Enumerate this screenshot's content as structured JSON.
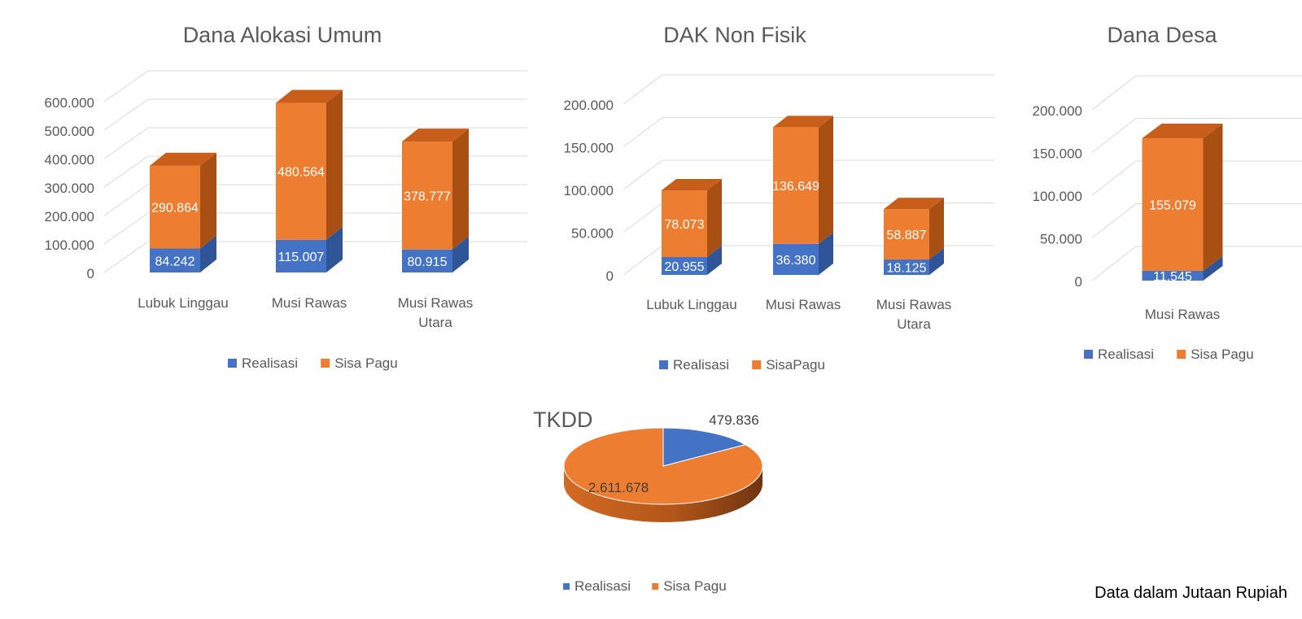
{
  "note": "Data dalam Jutaan Rupiah",
  "colors": {
    "realisasi": "#4472C4",
    "realisasi_top": "#3b63ad",
    "realisasi_side": "#2f5597",
    "sisa": "#ED7D31",
    "sisa_top": "#c85e1a",
    "sisa_side": "#a85014",
    "grid": "#d9d9d9",
    "text": "#595959"
  },
  "chart_data": [
    {
      "type": "bar",
      "stacked": true,
      "title": "Dana Alokasi Umum",
      "categories": [
        "Lubuk Linggau",
        "Musi Rawas",
        "Musi Rawas Utara"
      ],
      "series": [
        {
          "name": "Realisasi",
          "values": [
            84242,
            115007,
            80915
          ],
          "labels": [
            "84.242",
            "115.007",
            "80.915"
          ]
        },
        {
          "name": "Sisa Pagu",
          "values": [
            290864,
            480564,
            378777
          ],
          "labels": [
            "290.864",
            "480.564",
            "378.777"
          ]
        }
      ],
      "ylim": [
        0,
        600000
      ],
      "yticks": [
        0,
        100000,
        200000,
        300000,
        400000,
        500000,
        600000
      ],
      "ytick_labels": [
        "0",
        "100.000",
        "200.000",
        "300.000",
        "400.000",
        "500.000",
        "600.000"
      ],
      "legend": "bottom",
      "grid": true
    },
    {
      "type": "bar",
      "stacked": true,
      "title": "DAK Non Fisik",
      "categories": [
        "Lubuk Linggau",
        "Musi Rawas",
        "Musi Rawas Utara"
      ],
      "series": [
        {
          "name": "Realisasi",
          "values": [
            20955,
            36380,
            18125
          ],
          "labels": [
            "20.955",
            "36.380",
            "18.125"
          ]
        },
        {
          "name": "SisaPagu",
          "values": [
            78073,
            136649,
            58887
          ],
          "labels": [
            "78.073",
            "136.649",
            "58.887"
          ]
        }
      ],
      "ylim": [
        0,
        200000
      ],
      "yticks": [
        0,
        50000,
        100000,
        150000,
        200000
      ],
      "ytick_labels": [
        "0",
        "50.000",
        "100.000",
        "150.000",
        "200.000"
      ],
      "legend": "bottom",
      "grid": true
    },
    {
      "type": "bar",
      "stacked": true,
      "title": "Dana Desa",
      "categories": [
        "Musi Rawas"
      ],
      "series": [
        {
          "name": "Realisasi",
          "values": [
            11545
          ],
          "labels": [
            "11.545"
          ]
        },
        {
          "name": "Sisa Pagu",
          "values": [
            155079
          ],
          "labels": [
            "155.079"
          ]
        }
      ],
      "ylim": [
        0,
        200000
      ],
      "yticks": [
        0,
        50000,
        100000,
        150000,
        200000
      ],
      "ytick_labels": [
        "0",
        "50.000",
        "100.000",
        "150.000",
        "200.000"
      ],
      "legend": "bottom",
      "grid": true
    },
    {
      "type": "pie",
      "title": "TKDD",
      "slices": [
        {
          "name": "Realisasi",
          "value": 479836,
          "label": "479.836"
        },
        {
          "name": "Sisa Pagu",
          "value": 2611678,
          "label": "2.611.678"
        }
      ],
      "legend": "bottom"
    }
  ]
}
